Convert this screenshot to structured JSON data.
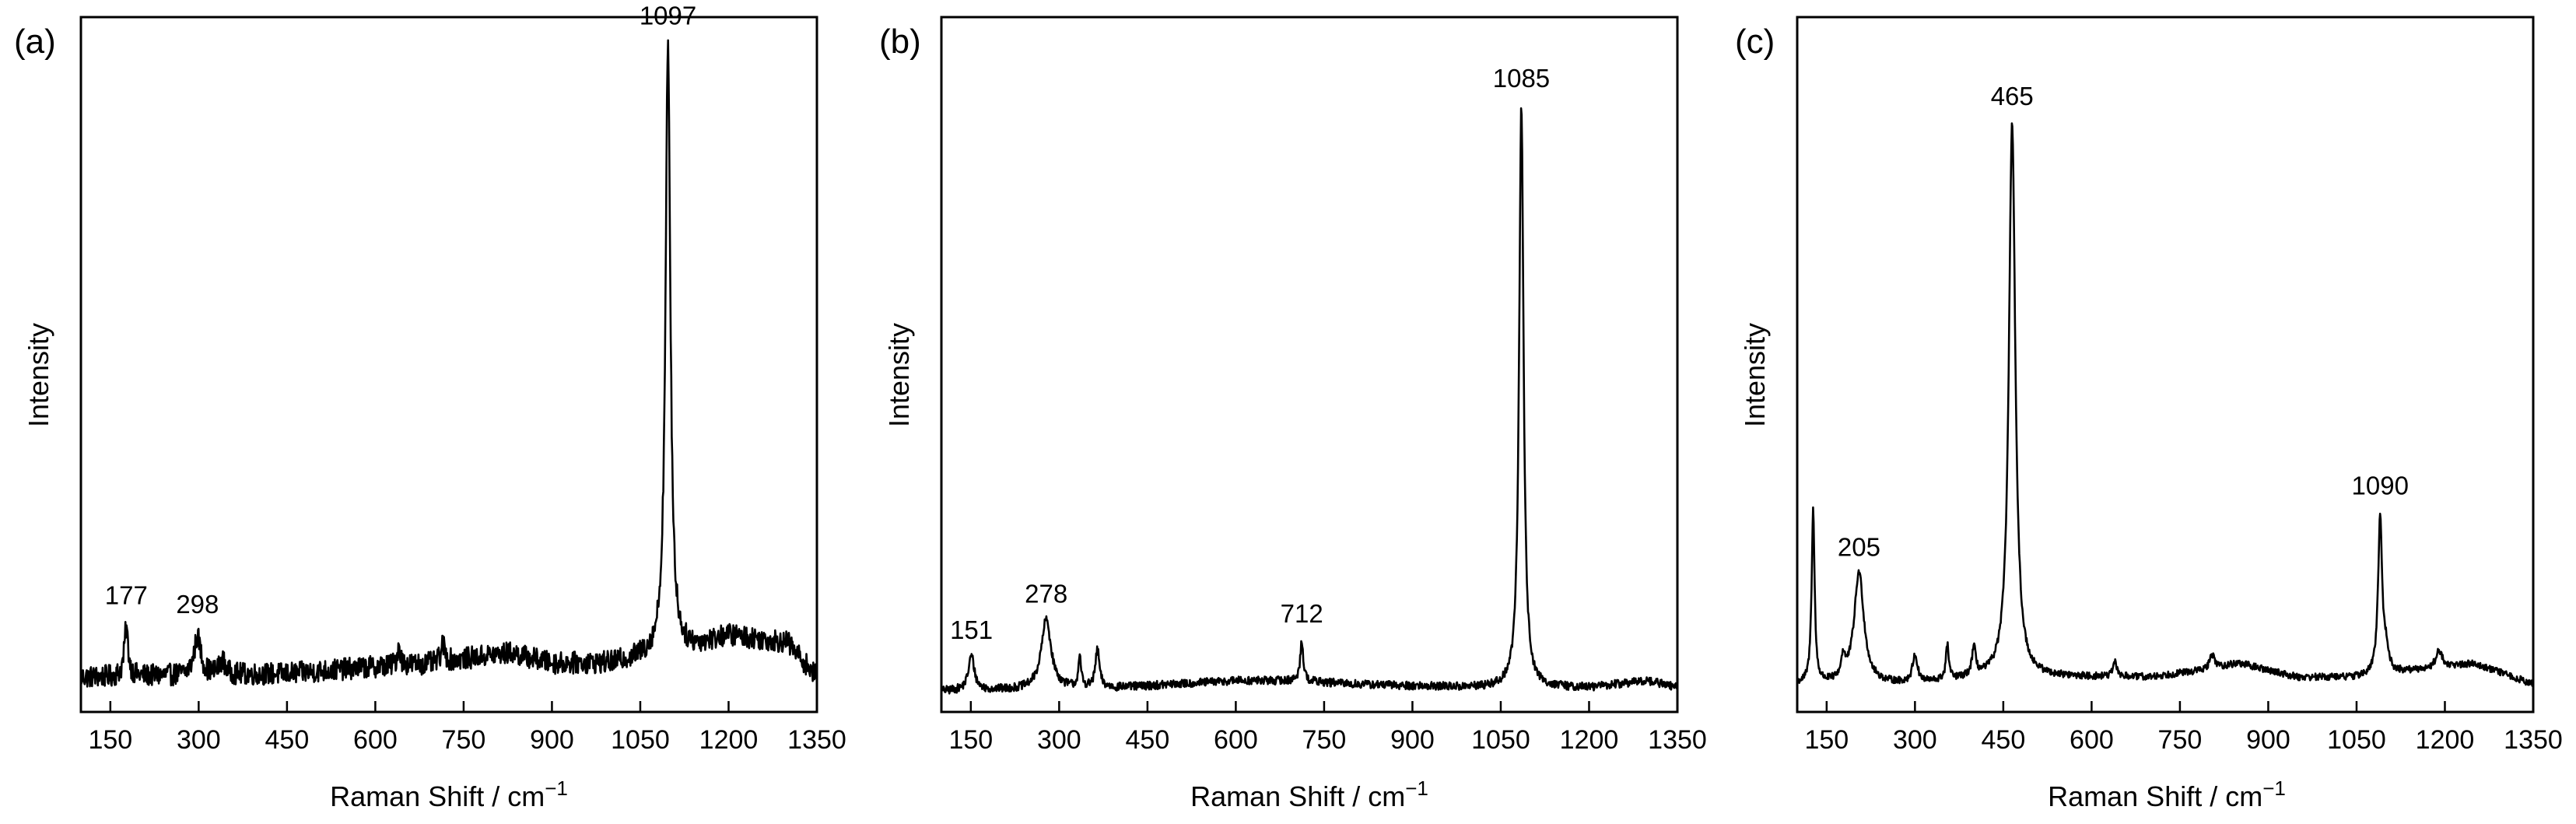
{
  "figure": {
    "background": "#ffffff",
    "line_color": "#000000"
  },
  "chart_data": [
    {
      "type": "line",
      "panel_label": "(a)",
      "title": "",
      "xlabel": "Raman Shift / cm",
      "xlabel_sup": "−1",
      "ylabel": "Intensity",
      "xlim": [
        100,
        1350
      ],
      "ylim": [
        0,
        100
      ],
      "x_ticks": [
        150,
        300,
        450,
        600,
        750,
        900,
        1050,
        1200,
        1350
      ],
      "y_ticks_shown": false,
      "grid": false,
      "legend": "none",
      "baseline": [
        [
          100,
          5
        ],
        [
          450,
          5.5
        ],
        [
          600,
          6.5
        ],
        [
          700,
          7
        ],
        [
          780,
          8
        ],
        [
          830,
          8.5
        ],
        [
          900,
          7
        ],
        [
          1000,
          7
        ],
        [
          1060,
          8
        ],
        [
          1130,
          9
        ],
        [
          1200,
          11
        ],
        [
          1250,
          10.5
        ],
        [
          1300,
          10
        ],
        [
          1340,
          6
        ],
        [
          1350,
          5
        ]
      ],
      "noise_amplitude": 1.6,
      "peaks": [
        {
          "x": 177,
          "height": 7,
          "width": 4
        },
        {
          "x": 298,
          "height": 5.5,
          "width": 7
        },
        {
          "x": 340,
          "height": 2,
          "width": 6
        },
        {
          "x": 640,
          "height": 3,
          "width": 3
        },
        {
          "x": 715,
          "height": 2.5,
          "width": 4
        },
        {
          "x": 1097,
          "height": 87,
          "width": 5
        }
      ],
      "annotations": [
        {
          "x": 177,
          "label": "177"
        },
        {
          "x": 298,
          "label": "298"
        },
        {
          "x": 1097,
          "label": "1097"
        }
      ]
    },
    {
      "type": "line",
      "panel_label": "(b)",
      "title": "",
      "xlabel": "Raman Shift / cm",
      "xlabel_sup": "−1",
      "ylabel": "Intensity",
      "xlim": [
        100,
        1350
      ],
      "ylim": [
        0,
        100
      ],
      "x_ticks": [
        150,
        300,
        450,
        600,
        750,
        900,
        1050,
        1200,
        1350
      ],
      "y_ticks_shown": false,
      "grid": false,
      "legend": "none",
      "baseline": [
        [
          100,
          3
        ],
        [
          400,
          3.5
        ],
        [
          600,
          4.5
        ],
        [
          700,
          4.5
        ],
        [
          800,
          4
        ],
        [
          1000,
          3.5
        ],
        [
          1200,
          3.5
        ],
        [
          1300,
          4.5
        ],
        [
          1350,
          3.5
        ]
      ],
      "noise_amplitude": 0.6,
      "peaks": [
        {
          "x": 151,
          "height": 5,
          "width": 6
        },
        {
          "x": 278,
          "height": 10,
          "width": 10
        },
        {
          "x": 335,
          "height": 4,
          "width": 3
        },
        {
          "x": 365,
          "height": 5.5,
          "width": 4
        },
        {
          "x": 712,
          "height": 6,
          "width": 3
        },
        {
          "x": 1085,
          "height": 84,
          "width": 4.5
        }
      ],
      "annotations": [
        {
          "x": 151,
          "label": "151"
        },
        {
          "x": 278,
          "label": "278"
        },
        {
          "x": 712,
          "label": "712"
        },
        {
          "x": 1085,
          "label": "1085"
        }
      ]
    },
    {
      "type": "line",
      "panel_label": "(c)",
      "title": "",
      "xlabel": "Raman Shift / cm",
      "xlabel_sup": "−1",
      "ylabel": "Intensity",
      "xlim": [
        100,
        1350
      ],
      "ylim": [
        0,
        100
      ],
      "x_ticks": [
        150,
        300,
        450,
        600,
        750,
        900,
        1050,
        1200,
        1350
      ],
      "y_ticks_shown": false,
      "grid": false,
      "legend": "none",
      "baseline": [
        [
          100,
          4
        ],
        [
          300,
          4
        ],
        [
          450,
          5
        ],
        [
          600,
          5
        ],
        [
          700,
          5
        ],
        [
          790,
          6
        ],
        [
          850,
          7
        ],
        [
          950,
          5
        ],
        [
          1050,
          5
        ],
        [
          1150,
          6
        ],
        [
          1250,
          7
        ],
        [
          1300,
          5.5
        ],
        [
          1350,
          4
        ]
      ],
      "noise_amplitude": 0.5,
      "peaks": [
        {
          "x": 127,
          "height": 25,
          "width": 3
        },
        {
          "x": 178,
          "height": 3,
          "width": 4
        },
        {
          "x": 205,
          "height": 16,
          "width": 10
        },
        {
          "x": 300,
          "height": 4,
          "width": 5
        },
        {
          "x": 355,
          "height": 5,
          "width": 3
        },
        {
          "x": 400,
          "height": 4,
          "width": 4
        },
        {
          "x": 465,
          "height": 80,
          "width": 6.5
        },
        {
          "x": 640,
          "height": 2,
          "width": 4
        },
        {
          "x": 805,
          "height": 2,
          "width": 5
        },
        {
          "x": 1090,
          "height": 23,
          "width": 4
        },
        {
          "x": 1100,
          "height": 3,
          "width": 5
        },
        {
          "x": 1190,
          "height": 2.5,
          "width": 6
        }
      ],
      "annotations": [
        {
          "x": 205,
          "label": "205"
        },
        {
          "x": 465,
          "label": "465"
        },
        {
          "x": 1090,
          "label": "1090"
        }
      ]
    }
  ]
}
